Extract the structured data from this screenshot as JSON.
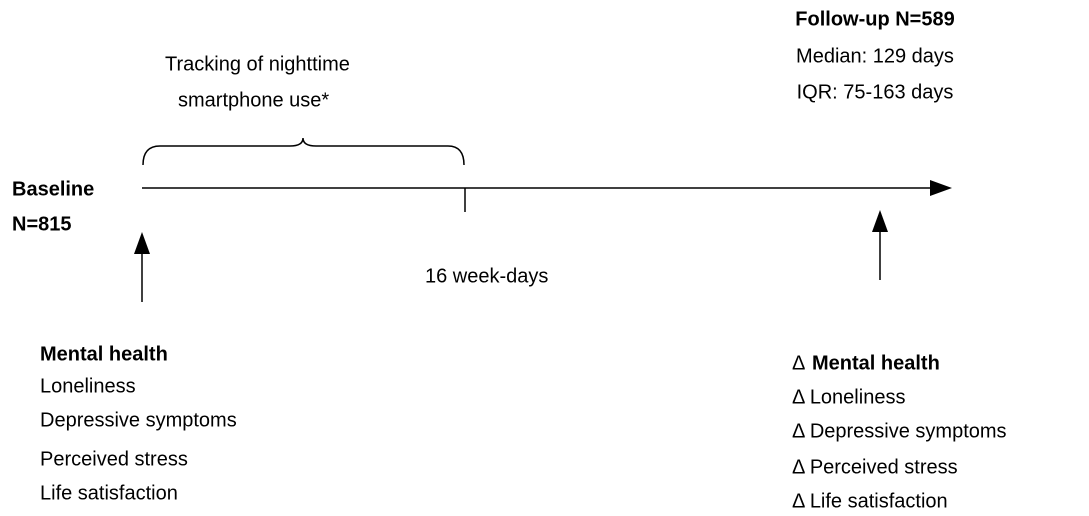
{
  "baseline": {
    "label": "Baseline",
    "n": "N=815"
  },
  "follow_up": {
    "title": "Follow-up N=589",
    "median": "Median: 129 days",
    "iqr": "IQR: 75-163 days"
  },
  "tracking": {
    "lines": [
      "Tracking of nighttime",
      "smartphone use*"
    ]
  },
  "duration": "16 week-days",
  "baseline_measures": {
    "heading": "Mental health",
    "items": [
      "Loneliness",
      "Depressive symptoms",
      "Perceived stress",
      "Life satisfaction"
    ]
  },
  "followup_measures": {
    "delta": "Δ",
    "heading": "Mental health",
    "items": [
      "Δ Loneliness",
      "Δ Depressive symptoms",
      "Δ Perceived stress",
      "Δ Life satisfaction"
    ]
  }
}
